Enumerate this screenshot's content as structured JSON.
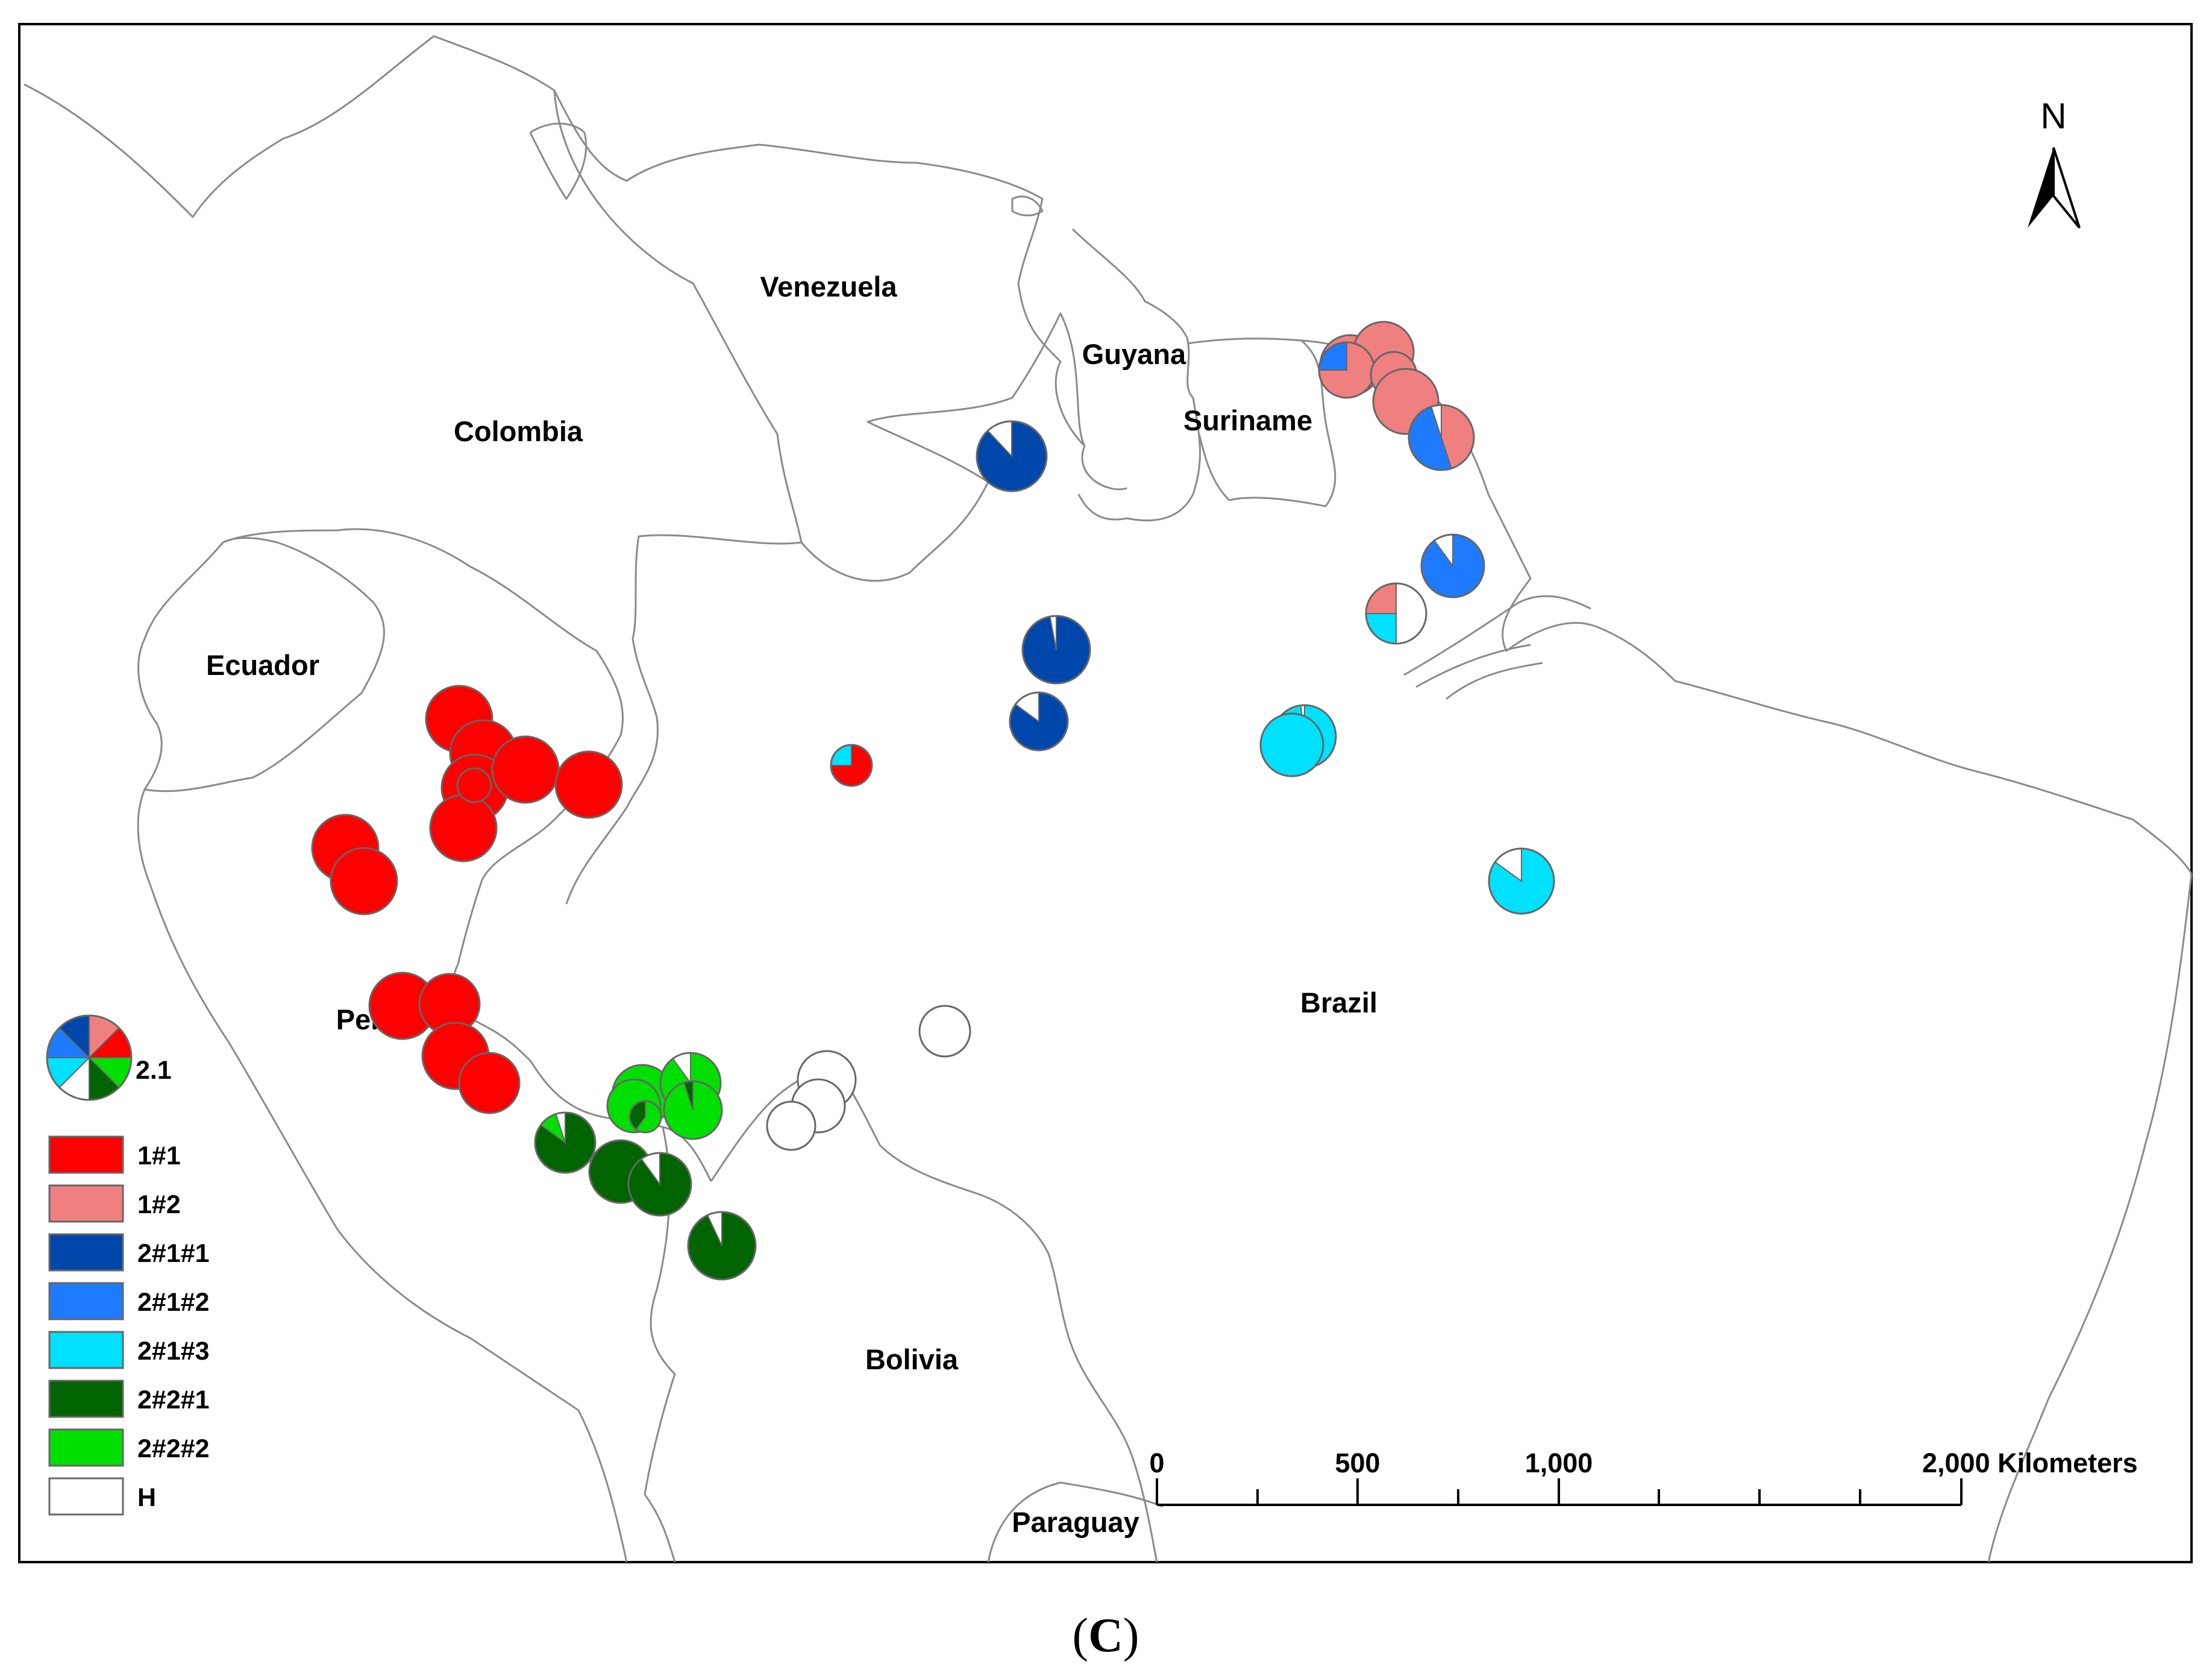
{
  "panel_label": {
    "open": "(",
    "letter": "C",
    "close": ")"
  },
  "north_label": "N",
  "countries": [
    {
      "id": "venezuela",
      "label": "Venezuela"
    },
    {
      "id": "guyana",
      "label": "Guyana"
    },
    {
      "id": "suriname",
      "label": "Suriname"
    },
    {
      "id": "colombia",
      "label": "Colombia"
    },
    {
      "id": "ecuador",
      "label": "Ecuador"
    },
    {
      "id": "peru",
      "label": "Peru"
    },
    {
      "id": "brazil",
      "label": "Brazil"
    },
    {
      "id": "bolivia",
      "label": "Bolivia"
    },
    {
      "id": "paraguay",
      "label": "Paraguay"
    }
  ],
  "legend": {
    "sample_label": "2.1",
    "items": [
      {
        "label": "1#1",
        "color": "#ff0000"
      },
      {
        "label": "1#2",
        "color": "#f08080"
      },
      {
        "label": "2#1#1",
        "color": "#0047ab"
      },
      {
        "label": "2#1#2",
        "color": "#1e7bff"
      },
      {
        "label": "2#1#3",
        "color": "#00e1ff"
      },
      {
        "label": "2#2#1",
        "color": "#006400"
      },
      {
        "label": "2#2#2",
        "color": "#00e000"
      },
      {
        "label": "H",
        "color": "#ffffff"
      }
    ]
  },
  "scale_bar": {
    "ticks": [
      {
        "label": "0"
      },
      {
        "label": "500"
      },
      {
        "label": "1,000"
      },
      {
        "label": "2,000 Kilometers"
      }
    ]
  }
}
